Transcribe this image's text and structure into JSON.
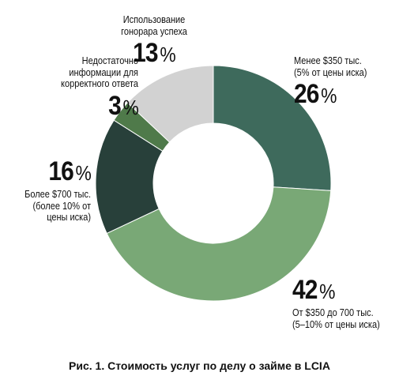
{
  "chart_data": {
    "type": "pie",
    "donut": true,
    "title": "Рис. 1. Стоимость услуг по делу о займе в LCIA",
    "slices": [
      {
        "value": 26,
        "label": "Менее $350 тыс.\n(5% от цены иска)",
        "color": "#3e6a5c"
      },
      {
        "value": 42,
        "label": "От $350 до 700 тыс.\n(5–10% от цены иска)",
        "color": "#79a876"
      },
      {
        "value": 16,
        "label": "Более $700 тыс.\n(более 10% от\nцены иска)",
        "color": "#28403a"
      },
      {
        "value": 3,
        "label": "Недостаточно\nинформации для\nкорректного ответа",
        "color": "#4f7a4a"
      },
      {
        "value": 13,
        "label": "Использование\nгонорара успеха",
        "color": "#d2d2d2"
      }
    ],
    "percent_sign": "%"
  }
}
